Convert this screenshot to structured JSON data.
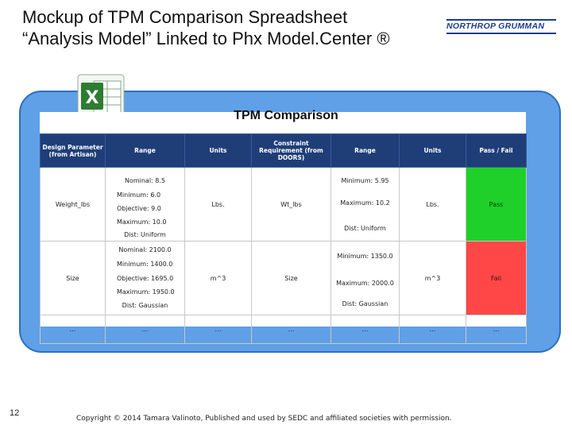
{
  "slide": {
    "title_line1": "Mockup of TPM Comparison Spreadsheet",
    "title_line2": "“Analysis Model” Linked to Phx Model.Center ®",
    "logo_text": "NORTHROP GRUMMAN",
    "page_number": "12",
    "copyright": "Copyright © 2014 Tamara Valinoto, Published and used by SEDC and affiliated societies with permission."
  },
  "sheet": {
    "title": "TPM Comparison",
    "headers": [
      "Design Parameter (from Artisan)",
      "Range",
      "Units",
      "Constraint Requirement (from DOORS)",
      "Range",
      "Units",
      "Pass / Fail"
    ],
    "rows": [
      {
        "parameter": "Weight_lbs",
        "design_range": {
          "nominal": "Nominal: 8.5",
          "minimum": "Minimum: 6.0",
          "objective": "Objective: 9.0",
          "maximum": "Maximum: 10.0",
          "distribution": "Dist: Uniform"
        },
        "design_units": "Lbs.",
        "requirement": "Wt_lbs",
        "req_range": {
          "minimum": "Minimum: 5.95",
          "maximum": "Maximum: 10.2",
          "distribution": "Dist: Uniform"
        },
        "req_units": "Lbs.",
        "result": "Pass"
      },
      {
        "parameter": "Size",
        "design_range": {
          "nominal": "Nominal: 2100.0",
          "minimum": "Minimum: 1400.0",
          "objective": "Objective: 1695.0",
          "maximum": "Maximum: 1950.0",
          "distribution": "Dist: Gaussian"
        },
        "design_units": "m^3",
        "requirement": "Size",
        "req_range": {
          "minimum": "Minimum: 1350.0",
          "maximum": "Maximum: 2000.0",
          "distribution": "Dist: Gaussian"
        },
        "req_units": "m^3",
        "result": "Fail"
      }
    ],
    "ellipsis_row": [
      "…",
      "…",
      "…",
      "…",
      "…",
      "…",
      "…"
    ]
  },
  "colors": {
    "panel": "#5fa0e6",
    "header": "#1f3e78",
    "pass": "#1fd02a",
    "fail": "#ff4747",
    "logo": "#1a3e8c"
  }
}
